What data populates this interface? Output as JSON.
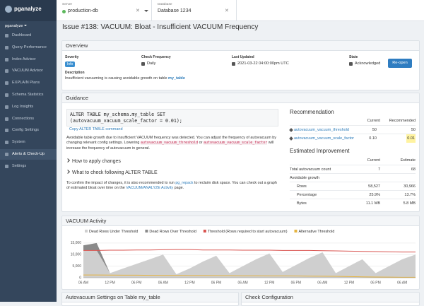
{
  "sidebar": {
    "brand": "pganalyze",
    "org": "pganalyze",
    "active_index": 10,
    "items": [
      "Dashboard",
      "Query Performance",
      "Index Advisor",
      "VACUUM Advisor",
      "EXPLAIN Plans",
      "Schema Statistics",
      "Log Insights",
      "Connections",
      "Config Settings",
      "System",
      "Alerts & Check-Up",
      "Settings"
    ]
  },
  "topbar": {
    "server_label": "Server",
    "server": "production-db",
    "database_label": "Database",
    "database": "Database 1234"
  },
  "issue_title": "Issue #138: VACUUM: Bloat - Insufficient VACUUM Frequency",
  "overview": {
    "heading": "Overview",
    "fields": [
      {
        "label": "Severity",
        "value": "Info"
      },
      {
        "label": "Check Frequency",
        "value": "Daily"
      },
      {
        "label": "Last Updated",
        "value": "2021-03-22 04:00:00pm UTC"
      },
      {
        "label": "State",
        "value": "Acknowledged"
      }
    ],
    "button": "Re-open",
    "description_label": "Description",
    "description": "Insufficient vacuuming is causing avoidable growth on table ",
    "description_link": "my_table"
  },
  "guidance": {
    "heading": "Guidance",
    "code_line1": "ALTER TABLE my_schema.my_table SET",
    "code_line2": "(autovacuum_vacuum_scale_factor = 0.01);",
    "copy": "Copy ALTER TABLE command",
    "paragraph1": [
      {
        "text": "Avoidable table growth due to insufficient VACUUM frequency was detected. You can adjust the frequency of autovacuum by changing relevant config settings. Lowering "
      },
      {
        "code": "autovacuum_vacuum_threshold"
      },
      {
        "text": " or "
      },
      {
        "code": "autovacuum_vacuum_scale_factor"
      },
      {
        "text": " will increase the frequency of autovacuum in general."
      }
    ],
    "expanders": [
      "How to apply changes",
      "What to check following ALTER TABLE"
    ],
    "paragraph2": [
      {
        "text": "To confirm the impact of changes, it is also recommended to run "
      },
      {
        "link": "pg_repack"
      },
      {
        "text": " to reclaim disk space. You can check out a graph of estimated bloat over time on the "
      },
      {
        "link": "VACUUM/ANALYZE Activity"
      },
      {
        "text": " page."
      }
    ],
    "recommendation": {
      "heading": "Recommendation",
      "columns": [
        "Current",
        "Recommended"
      ],
      "rows": [
        {
          "name": "autovacuum_vacuum_threshold",
          "current": "50",
          "recommended": "50"
        },
        {
          "name": "autovacuum_vacuum_scale_factor",
          "current": "0.10",
          "recommended": "0.01"
        }
      ]
    },
    "improvement": {
      "heading": "Estimated Improvement",
      "columns": [
        "Current",
        "Estimate"
      ],
      "rows": [
        {
          "name": "Total autovacuum count",
          "current": "7",
          "estimate": "68"
        },
        {
          "name": "Avoidable growth"
        },
        {
          "name": "Rows",
          "current": "58,527",
          "estimate": "30,966"
        },
        {
          "name": "Percentage",
          "current": "25.9%",
          "estimate": "13.7%"
        },
        {
          "name": "Bytes",
          "current": "11.1 MB",
          "estimate": "5.8 MB"
        }
      ]
    }
  },
  "vacuum_activity": {
    "heading": "VACUUM Activity",
    "chart": {
      "type": "area",
      "categories": [
        "06 AM",
        null,
        "12 PM",
        null,
        "06 PM",
        null,
        "06 AM",
        null,
        "12 PM",
        null,
        "06 PM",
        null,
        "06 AM",
        null,
        "12 PM",
        null,
        "06 PM",
        null,
        "06 AM",
        null,
        "12 PM",
        null,
        "06 PM",
        null,
        "06 AM",
        null
      ],
      "ylim": [
        0,
        16500
      ],
      "yticks": [
        0,
        {
          "value": 5000,
          "label": "5,000"
        },
        {
          "value": 10000,
          "label": "10,000"
        },
        {
          "value": 15000,
          "label": "15,000"
        }
      ],
      "grid": true,
      "series": [
        {
          "name": "Dead Rows Under Threshold",
          "color": "#cfcfcf",
          "type": "area",
          "values": [
            11800,
            11800,
            2000,
            4000,
            6000,
            8000,
            10000,
            1500,
            4000,
            7000,
            9500,
            2000,
            5000,
            8000,
            10500,
            2500,
            5500,
            8500,
            11000,
            2000,
            5000,
            8000,
            2000,
            5000,
            8000,
            10000
          ]
        },
        {
          "name": "Dead Rows Over Threshold",
          "color": "#8a8a8a",
          "type": "area",
          "values": [
            2200,
            3200,
            0,
            0,
            0,
            0,
            0,
            0,
            0,
            0,
            0,
            0,
            0,
            0,
            0,
            0,
            0,
            0,
            0,
            0,
            0,
            0,
            0,
            0,
            0,
            0
          ]
        },
        {
          "name": "Threshold (Rows required to start autovacuum)",
          "color": "#d9534f",
          "type": "line",
          "values": [
            11800,
            11800,
            11900,
            11900,
            12000,
            12000,
            12100,
            12200,
            12200,
            12000,
            12000,
            12000,
            11900,
            11900,
            11900,
            11800,
            11800,
            11800,
            11700,
            11600,
            11500,
            11400,
            11300,
            11200,
            11100,
            11100
          ]
        },
        {
          "name": "Alternative Threshold",
          "color": "#e6b440",
          "type": "line",
          "values": [
            1200,
            1200,
            1150,
            1100,
            1100,
            1050,
            1000,
            1000,
            950,
            950,
            900,
            900,
            850,
            850,
            800,
            800,
            750,
            700,
            650,
            600,
            500,
            400,
            300,
            250,
            200,
            200
          ]
        }
      ]
    }
  },
  "bottom": {
    "left_heading": "Autovacuum Settings on Table my_table",
    "right_heading": "Check Configuration"
  }
}
